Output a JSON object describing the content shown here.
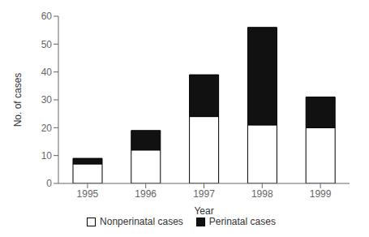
{
  "chart_data": {
    "type": "bar",
    "stacked": true,
    "categories": [
      "1995",
      "1996",
      "1997",
      "1998",
      "1999"
    ],
    "series": [
      {
        "name": "Nonperinatal cases",
        "color": "#ffffff",
        "values": [
          7,
          12,
          24,
          21,
          20
        ]
      },
      {
        "name": "Perinatal cases",
        "color": "#111111",
        "values": [
          2,
          7,
          15,
          35,
          11
        ]
      }
    ],
    "xlabel": "Year",
    "ylabel": "No. of cases",
    "ylim": [
      0,
      60
    ],
    "yticks": [
      0,
      10,
      20,
      30,
      40,
      50,
      60
    ],
    "legend": "bottom",
    "grid": false
  }
}
